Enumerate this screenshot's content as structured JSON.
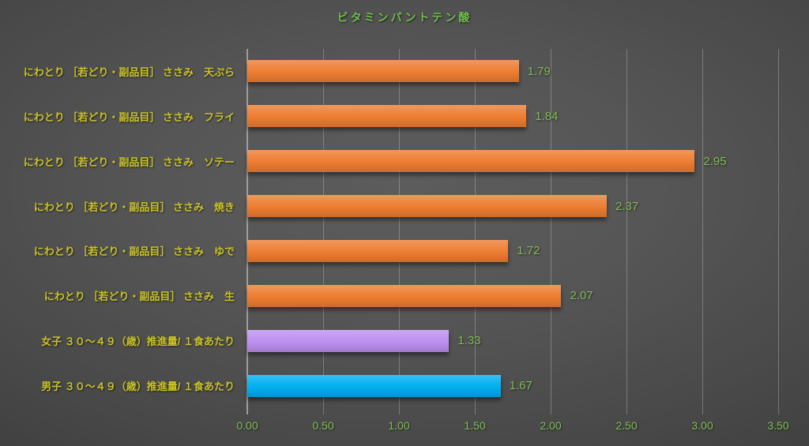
{
  "chart_data": {
    "type": "bar",
    "orientation": "horizontal",
    "title": "ビタミンパントテン酸",
    "categories": [
      "にわとり ［若どり・副品目］ ささみ　天ぷら",
      "にわとり ［若どり・副品目］ ささみ　フライ",
      "にわとり ［若どり・副品目］ ささみ　ソテー",
      "にわとり ［若どり・副品目］ ささみ　焼き",
      "にわとり ［若どり・副品目］ ささみ　ゆで",
      "にわとり ［若どり・副品目］ ささみ　生",
      "女子 ３０～４９（歳）推進量/ １食あたり",
      "男子 ３０～４９（歳）推進量/ １食あたり"
    ],
    "values": [
      1.79,
      1.84,
      2.95,
      2.37,
      1.72,
      2.07,
      1.33,
      1.67
    ],
    "value_labels": [
      "1.79",
      "1.84",
      "2.95",
      "2.37",
      "1.72",
      "2.07",
      "1.33",
      "1.67"
    ],
    "bar_colors": [
      "#ed7d31",
      "#ed7d31",
      "#ed7d31",
      "#ed7d31",
      "#ed7d31",
      "#ed7d31",
      "#bd8ff0",
      "#00aeef"
    ],
    "xlim": [
      0,
      3.5
    ],
    "xtick_values": [
      0,
      0.5,
      1.0,
      1.5,
      2.0,
      2.5,
      3.0,
      3.5
    ],
    "xtick_labels": [
      "0.00",
      "0.50",
      "1.00",
      "1.50",
      "2.00",
      "2.50",
      "3.00",
      "3.50"
    ],
    "grid": true,
    "legend_position": "none"
  },
  "colors": {
    "title_green": "#6ebe4a",
    "value_label_green": "#7ebe52",
    "category_label_yellow": "#c9c227",
    "axis_line_gray": "#9d9d9d",
    "gridline_gray": "#757575",
    "background_center": "#5a5a5a",
    "background_corner": "#262626",
    "bar_orange": "#ed7d31",
    "bar_purple": "#bd8ff0",
    "bar_blue": "#00aeef"
  }
}
